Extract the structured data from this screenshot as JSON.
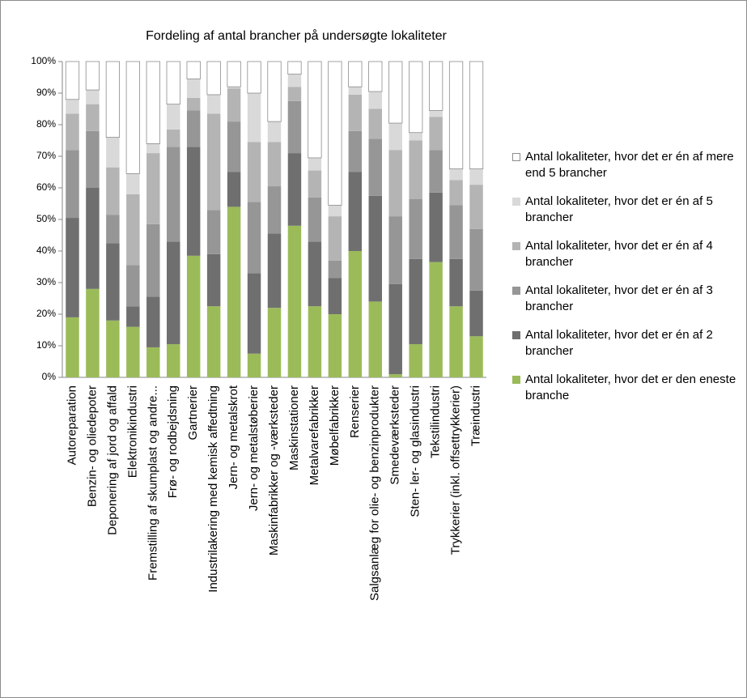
{
  "chart_data": {
    "type": "stacked_bar",
    "title": "Fordeling af antal brancher på undersøgte lokaliteter",
    "categories": [
      "Autoreparation",
      "Benzin- og oliedepoter",
      "Deponering af jord og affald",
      "Elektronikindustri",
      "Fremstilling af skumplast og andre...",
      "Frø- og rodbejdsning",
      "Gartnerier",
      "Industrilakering med kemisk affedtning",
      "Jern- og metalskrot",
      "Jern- og metalstøberier",
      "Maskinfabrikker og -værksteder",
      "Maskinstationer",
      "Metalvarefabrikker",
      "Møbelfabrikker",
      "Renserier",
      "Salgsanlæg for olie- og benzinprodukter",
      "Smedeværksteder",
      "Sten- ler- og glasindustri",
      "Tekstilindustri",
      "Trykkerier (inkl. offsettrykkerier)",
      "Træindustri"
    ],
    "series": [
      {
        "name": "Antal lokaliteter, hvor det er den eneste branche",
        "color": "#9bbb59",
        "values": [
          19,
          28,
          18,
          16,
          9.5,
          10.5,
          38.5,
          22.5,
          54,
          7.5,
          22,
          48,
          22.5,
          20,
          40,
          24,
          1,
          10.5,
          36.5,
          22.5,
          13
        ]
      },
      {
        "name": "Antal lokaliteter, hvor det er én af 2 brancher",
        "color": "#6f6f6f",
        "values": [
          31.5,
          32,
          24.5,
          6.5,
          16,
          32.5,
          34.5,
          16.5,
          11,
          25.5,
          23.5,
          23,
          20.5,
          11.5,
          25,
          33.5,
          28.5,
          27,
          22,
          15,
          14.5
        ]
      },
      {
        "name": "Antal lokaliteter, hvor det er én af 3 brancher",
        "color": "#969696",
        "values": [
          21.5,
          18,
          9,
          13,
          23,
          30,
          11.5,
          14,
          16,
          22.5,
          15,
          16.5,
          14,
          5.5,
          13,
          18,
          21.5,
          19,
          13.5,
          17,
          19.5
        ]
      },
      {
        "name": "Antal lokaliteter, hvor det er én af 4 brancher",
        "color": "#b4b4b4",
        "values": [
          11.5,
          8.5,
          15,
          22.5,
          22.5,
          5.5,
          4,
          30.5,
          10.5,
          19,
          14,
          4.5,
          8.5,
          14,
          11.5,
          9.5,
          21,
          18.5,
          10.5,
          8,
          14
        ]
      },
      {
        "name": "Antal lokaliteter, hvor det er én af 5 brancher",
        "color": "#d9d9d9",
        "values": [
          4.5,
          4.5,
          9.5,
          6.5,
          3,
          8,
          6,
          6,
          0.5,
          15.5,
          6.5,
          4,
          4,
          3.5,
          2.5,
          5.5,
          8.5,
          2.5,
          2,
          3.5,
          5
        ]
      },
      {
        "name": "Antal lokaliteter, hvor det er én af mere end 5 brancher",
        "color": "#ffffff",
        "values": [
          12,
          9,
          24,
          35.5,
          26,
          13.5,
          5.5,
          10.5,
          8,
          10,
          19,
          4,
          30.5,
          45.5,
          8,
          9.5,
          19.5,
          22.5,
          15.5,
          34,
          34
        ]
      }
    ],
    "ylim": [
      0,
      100
    ],
    "yticks": [
      {
        "value": 0,
        "label": "0%"
      },
      {
        "value": 10,
        "label": "10%"
      },
      {
        "value": 20,
        "label": "20%"
      },
      {
        "value": 30,
        "label": "30%"
      },
      {
        "value": 40,
        "label": "40%"
      },
      {
        "value": 50,
        "label": "50%"
      },
      {
        "value": 60,
        "label": "60%"
      },
      {
        "value": 70,
        "label": "70%"
      },
      {
        "value": 80,
        "label": "80%"
      },
      {
        "value": 90,
        "label": "90%"
      },
      {
        "value": 100,
        "label": "100%"
      }
    ],
    "legend": "right"
  }
}
